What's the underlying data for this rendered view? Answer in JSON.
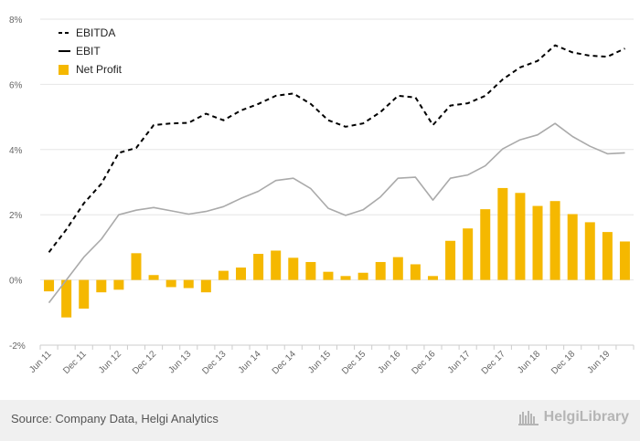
{
  "chart_data": {
    "type": "bar",
    "title": "",
    "xlabel": "",
    "ylabel": "",
    "ylim": [
      -2,
      8
    ],
    "yticks": [
      -2,
      0,
      2,
      4,
      6,
      8
    ],
    "ytick_labels": [
      "-2%",
      "0%",
      "2%",
      "4%",
      "6%",
      "8%"
    ],
    "x_tick_labels": [
      "Jun 11",
      "Dec 11",
      "Jun 12",
      "Dec 12",
      "Jun 13",
      "Dec 13",
      "Jun 14",
      "Dec 14",
      "Jun 15",
      "Dec 15",
      "Jun 16",
      "Dec 16",
      "Jun 17",
      "Dec 17",
      "Jun 18",
      "Dec 18",
      "Jun 19"
    ],
    "categories": [
      "Jun 11",
      "Sep 11",
      "Dec 11",
      "Mar 12",
      "Jun 12",
      "Sep 12",
      "Dec 12",
      "Mar 13",
      "Jun 13",
      "Sep 13",
      "Dec 13",
      "Mar 14",
      "Jun 14",
      "Sep 14",
      "Dec 14",
      "Mar 15",
      "Jun 15",
      "Sep 15",
      "Dec 15",
      "Mar 16",
      "Jun 16",
      "Sep 16",
      "Dec 16",
      "Mar 17",
      "Jun 17",
      "Sep 17",
      "Dec 17",
      "Mar 18",
      "Jun 18",
      "Sep 18",
      "Dec 18",
      "Mar 19",
      "Jun 19",
      "Sep 19"
    ],
    "legend_position": "top-left",
    "grid": true,
    "series": [
      {
        "name": "EBITDA",
        "kind": "line",
        "style": "dashed",
        "color": "#000000",
        "values": [
          0.85,
          1.55,
          2.35,
          2.95,
          3.9,
          4.05,
          4.75,
          4.8,
          4.82,
          5.1,
          4.9,
          5.2,
          5.4,
          5.65,
          5.72,
          5.4,
          4.9,
          4.7,
          4.8,
          5.15,
          5.65,
          5.6,
          4.75,
          5.35,
          5.42,
          5.65,
          6.15,
          6.52,
          6.72,
          7.2,
          6.98,
          6.88,
          6.85,
          7.1
        ]
      },
      {
        "name": "EBIT",
        "kind": "line",
        "style": "solid",
        "color": "#aaaaaa",
        "values": [
          -0.7,
          0.0,
          0.7,
          1.25,
          2.0,
          2.14,
          2.22,
          2.12,
          2.02,
          2.1,
          2.25,
          2.5,
          2.72,
          3.05,
          3.12,
          2.8,
          2.2,
          1.98,
          2.15,
          2.55,
          3.12,
          3.15,
          2.45,
          3.12,
          3.22,
          3.5,
          4.02,
          4.3,
          4.45,
          4.8,
          4.4,
          4.1,
          3.87,
          3.9
        ]
      },
      {
        "name": "Net Profit",
        "kind": "bar",
        "color": "#f5b800",
        "values": [
          -0.35,
          -1.15,
          -0.88,
          -0.38,
          -0.3,
          0.82,
          0.15,
          -0.22,
          -0.25,
          -0.38,
          0.28,
          0.38,
          0.8,
          0.9,
          0.68,
          0.55,
          0.25,
          0.12,
          0.22,
          0.55,
          0.7,
          0.48,
          0.12,
          1.2,
          1.58,
          2.17,
          2.82,
          2.67,
          2.27,
          2.42,
          2.02,
          1.77,
          1.47,
          1.18
        ]
      }
    ]
  },
  "footer": {
    "source": "Source: Company Data, Helgi Analytics",
    "brand": "HelgiLibrary"
  }
}
